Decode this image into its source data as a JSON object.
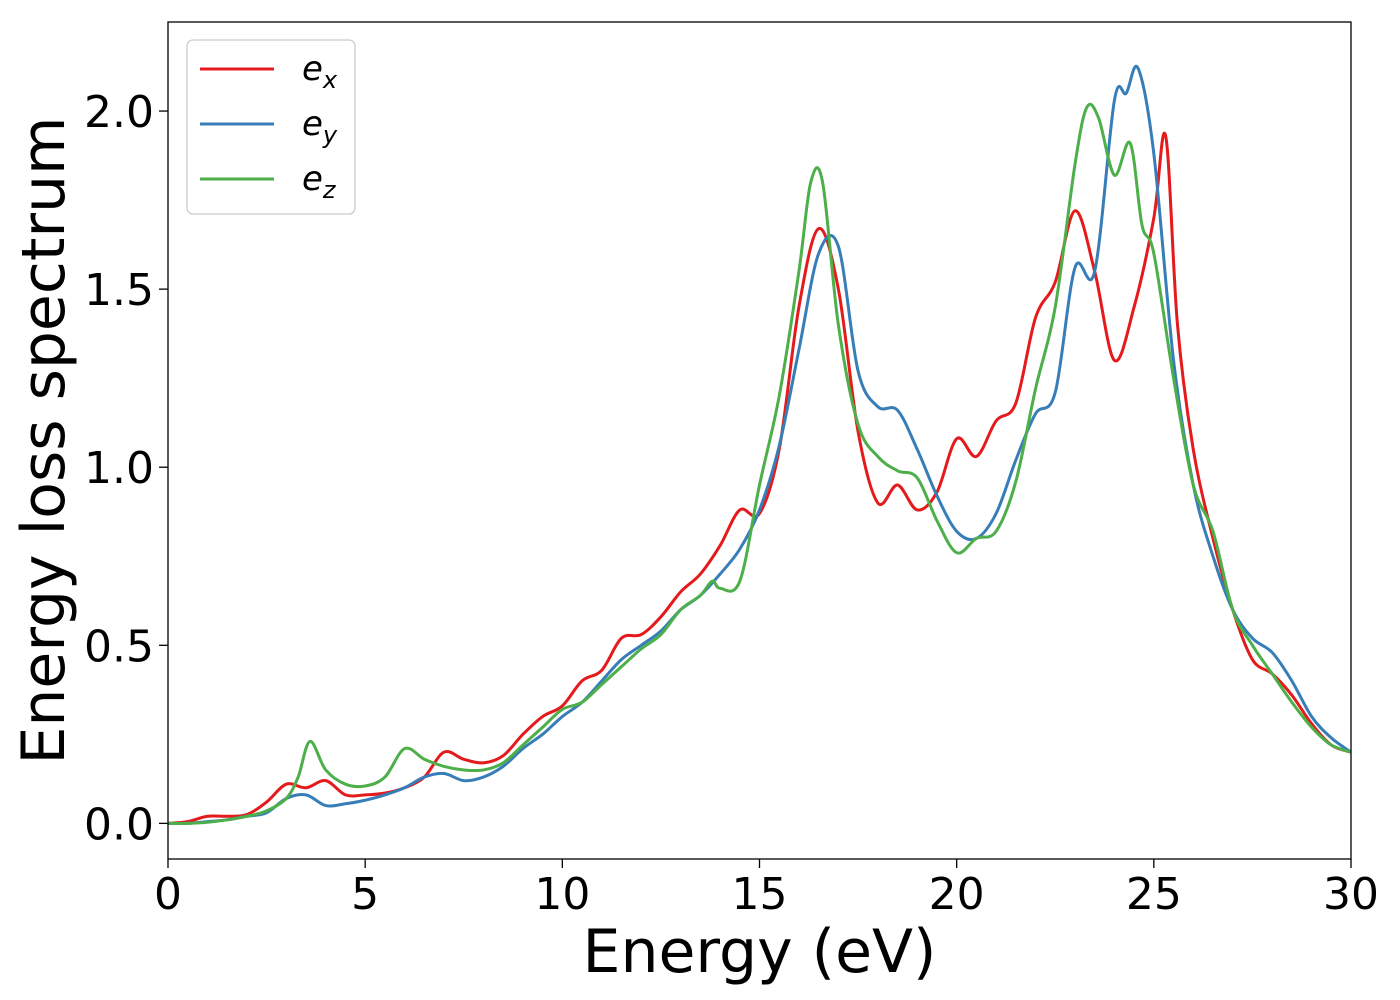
{
  "chart_data": {
    "type": "line",
    "title": "",
    "xlabel": "Energy (eV)",
    "ylabel": "Energy loss spectrum",
    "xlim": [
      0,
      30
    ],
    "ylim": [
      -0.1,
      2.25
    ],
    "xticks": [
      0,
      5,
      10,
      15,
      20,
      25,
      30
    ],
    "xtick_labels": [
      "0",
      "5",
      "10",
      "15",
      "20",
      "25",
      "30"
    ],
    "yticks": [
      0.0,
      0.5,
      1.0,
      1.5,
      2.0
    ],
    "ytick_labels": [
      "0.0",
      "0.5",
      "1.0",
      "1.5",
      "2.0"
    ],
    "grid": false,
    "legend_position": "top-left",
    "series": [
      {
        "name": "e_x",
        "legend_base": "e",
        "legend_sub": "x",
        "color": "#e41a1c",
        "x": [
          0,
          0.5,
          1.0,
          1.5,
          2.0,
          2.5,
          3.0,
          3.5,
          4.0,
          4.5,
          5.0,
          5.5,
          6.0,
          6.5,
          7.0,
          7.5,
          8.0,
          8.5,
          9.0,
          9.5,
          10.0,
          10.5,
          11.0,
          11.5,
          12.0,
          12.5,
          13.0,
          13.5,
          14.0,
          14.5,
          15.0,
          15.5,
          16.0,
          16.5,
          17.0,
          17.5,
          18.0,
          18.5,
          19.0,
          19.5,
          20.0,
          20.5,
          21.0,
          21.5,
          22.0,
          22.5,
          23.0,
          23.5,
          24.0,
          24.5,
          25.0,
          25.3,
          25.6,
          26.0,
          26.5,
          27.0,
          27.5,
          28.0,
          28.5,
          29.0,
          29.5,
          30.0
        ],
        "y": [
          0.0,
          0.005,
          0.02,
          0.02,
          0.025,
          0.06,
          0.11,
          0.1,
          0.12,
          0.08,
          0.08,
          0.085,
          0.1,
          0.13,
          0.2,
          0.18,
          0.17,
          0.19,
          0.25,
          0.3,
          0.33,
          0.4,
          0.43,
          0.52,
          0.53,
          0.58,
          0.65,
          0.7,
          0.78,
          0.88,
          0.87,
          1.05,
          1.45,
          1.67,
          1.5,
          1.1,
          0.9,
          0.95,
          0.88,
          0.93,
          1.08,
          1.03,
          1.13,
          1.18,
          1.42,
          1.52,
          1.72,
          1.55,
          1.3,
          1.45,
          1.7,
          1.93,
          1.4,
          1.05,
          0.8,
          0.6,
          0.46,
          0.42,
          0.36,
          0.28,
          0.22,
          0.2
        ]
      },
      {
        "name": "e_y",
        "legend_base": "e",
        "legend_sub": "y",
        "color": "#377eb8",
        "x": [
          0,
          0.5,
          1.0,
          1.5,
          2.0,
          2.5,
          3.0,
          3.5,
          4.0,
          4.5,
          5.0,
          5.5,
          6.0,
          6.5,
          7.0,
          7.5,
          8.0,
          8.5,
          9.0,
          9.5,
          10.0,
          10.5,
          11.0,
          11.5,
          12.0,
          12.5,
          13.0,
          13.5,
          14.0,
          14.5,
          15.0,
          15.5,
          16.0,
          16.5,
          17.0,
          17.5,
          18.0,
          18.5,
          19.0,
          19.5,
          20.0,
          20.5,
          21.0,
          21.5,
          22.0,
          22.5,
          23.0,
          23.5,
          24.0,
          24.3,
          24.6,
          25.0,
          25.5,
          26.0,
          26.5,
          27.0,
          27.5,
          28.0,
          28.5,
          29.0,
          29.5,
          30.0
        ],
        "y": [
          0.0,
          0.0,
          0.005,
          0.01,
          0.02,
          0.03,
          0.07,
          0.08,
          0.05,
          0.055,
          0.065,
          0.08,
          0.1,
          0.13,
          0.14,
          0.12,
          0.13,
          0.16,
          0.21,
          0.25,
          0.3,
          0.34,
          0.4,
          0.46,
          0.5,
          0.54,
          0.6,
          0.64,
          0.7,
          0.77,
          0.88,
          1.06,
          1.33,
          1.6,
          1.62,
          1.27,
          1.17,
          1.16,
          1.05,
          0.92,
          0.82,
          0.8,
          0.87,
          1.02,
          1.15,
          1.21,
          1.56,
          1.55,
          2.03,
          2.05,
          2.12,
          1.88,
          1.3,
          0.95,
          0.75,
          0.6,
          0.52,
          0.48,
          0.4,
          0.3,
          0.24,
          0.2
        ]
      },
      {
        "name": "e_z",
        "legend_base": "e",
        "legend_sub": "z",
        "color": "#4daf4a",
        "x": [
          0,
          0.5,
          1.0,
          1.5,
          2.0,
          2.5,
          3.0,
          3.3,
          3.6,
          4.0,
          4.5,
          5.0,
          5.5,
          6.0,
          6.5,
          7.0,
          7.5,
          8.0,
          8.5,
          9.0,
          9.5,
          10.0,
          10.5,
          11.0,
          11.5,
          12.0,
          12.5,
          13.0,
          13.5,
          13.8,
          14.0,
          14.5,
          15.0,
          15.5,
          16.0,
          16.3,
          16.6,
          17.0,
          17.5,
          18.0,
          18.5,
          19.0,
          19.5,
          20.0,
          20.5,
          21.0,
          21.5,
          22.0,
          22.5,
          23.0,
          23.3,
          23.6,
          24.0,
          24.4,
          24.7,
          25.0,
          25.5,
          26.0,
          26.5,
          27.0,
          27.5,
          28.0,
          28.5,
          29.0,
          29.5,
          30.0
        ],
        "y": [
          0.0,
          0.0,
          0.003,
          0.01,
          0.02,
          0.035,
          0.07,
          0.13,
          0.23,
          0.15,
          0.11,
          0.105,
          0.13,
          0.21,
          0.18,
          0.16,
          0.15,
          0.15,
          0.17,
          0.22,
          0.27,
          0.32,
          0.34,
          0.39,
          0.44,
          0.49,
          0.53,
          0.6,
          0.64,
          0.68,
          0.66,
          0.68,
          0.95,
          1.2,
          1.55,
          1.8,
          1.8,
          1.4,
          1.12,
          1.03,
          0.99,
          0.97,
          0.85,
          0.76,
          0.8,
          0.82,
          0.96,
          1.22,
          1.45,
          1.85,
          2.01,
          1.98,
          1.82,
          1.91,
          1.68,
          1.6,
          1.25,
          0.95,
          0.82,
          0.6,
          0.5,
          0.42,
          0.34,
          0.27,
          0.22,
          0.2
        ]
      }
    ]
  }
}
